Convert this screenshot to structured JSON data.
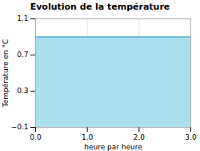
{
  "chart_data": {
    "type": "area",
    "title": "Evolution de la température",
    "xlabel": "heure par heure",
    "ylabel": "Température en °C",
    "x": [
      0,
      3
    ],
    "series": [
      {
        "type": "area",
        "color": "#aaddee",
        "values": [
          0.9,
          0.9
        ]
      },
      {
        "type": "line",
        "color": "#55bbcc",
        "values": [
          0.9,
          0.9
        ]
      }
    ],
    "xlim": [
      0,
      3
    ],
    "ylim": [
      -0.1,
      1.1
    ],
    "xticks": [
      0,
      1,
      2,
      3
    ],
    "yticks": [
      -0.1,
      0.3,
      0.7,
      1.1
    ],
    "grid": true
  }
}
